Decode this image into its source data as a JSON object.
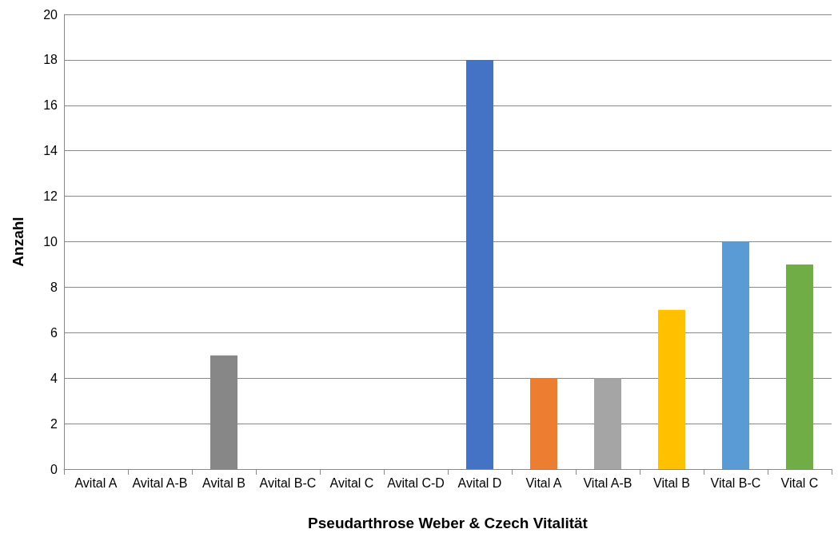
{
  "chart_data": {
    "type": "bar",
    "xlabel": "Pseudarthrose Weber & Czech Vitalität",
    "ylabel": "Anzahl",
    "categories": [
      "Avital A",
      "Avital A-B",
      "Avital B",
      "Avital B-C",
      "Avital C",
      "Avital C-D",
      "Avital D",
      "Vital A",
      "Vital A-B",
      "Vital B",
      "Vital B-C",
      "Vital C"
    ],
    "values": [
      0,
      0,
      5,
      0,
      0,
      0,
      18,
      4,
      4,
      7,
      10,
      9
    ],
    "colors": [
      "#4472c4",
      "#ed7d31",
      "#878787",
      "#ffc000",
      "#5b9bd5",
      "#70ad47",
      "#4472c4",
      "#ed7d31",
      "#a5a5a5",
      "#ffc000",
      "#5b9bd5",
      "#70ad47"
    ],
    "ylim": [
      0,
      20
    ],
    "yticks": [
      0,
      2,
      4,
      6,
      8,
      10,
      12,
      14,
      16,
      18,
      20
    ],
    "grid": "y"
  }
}
